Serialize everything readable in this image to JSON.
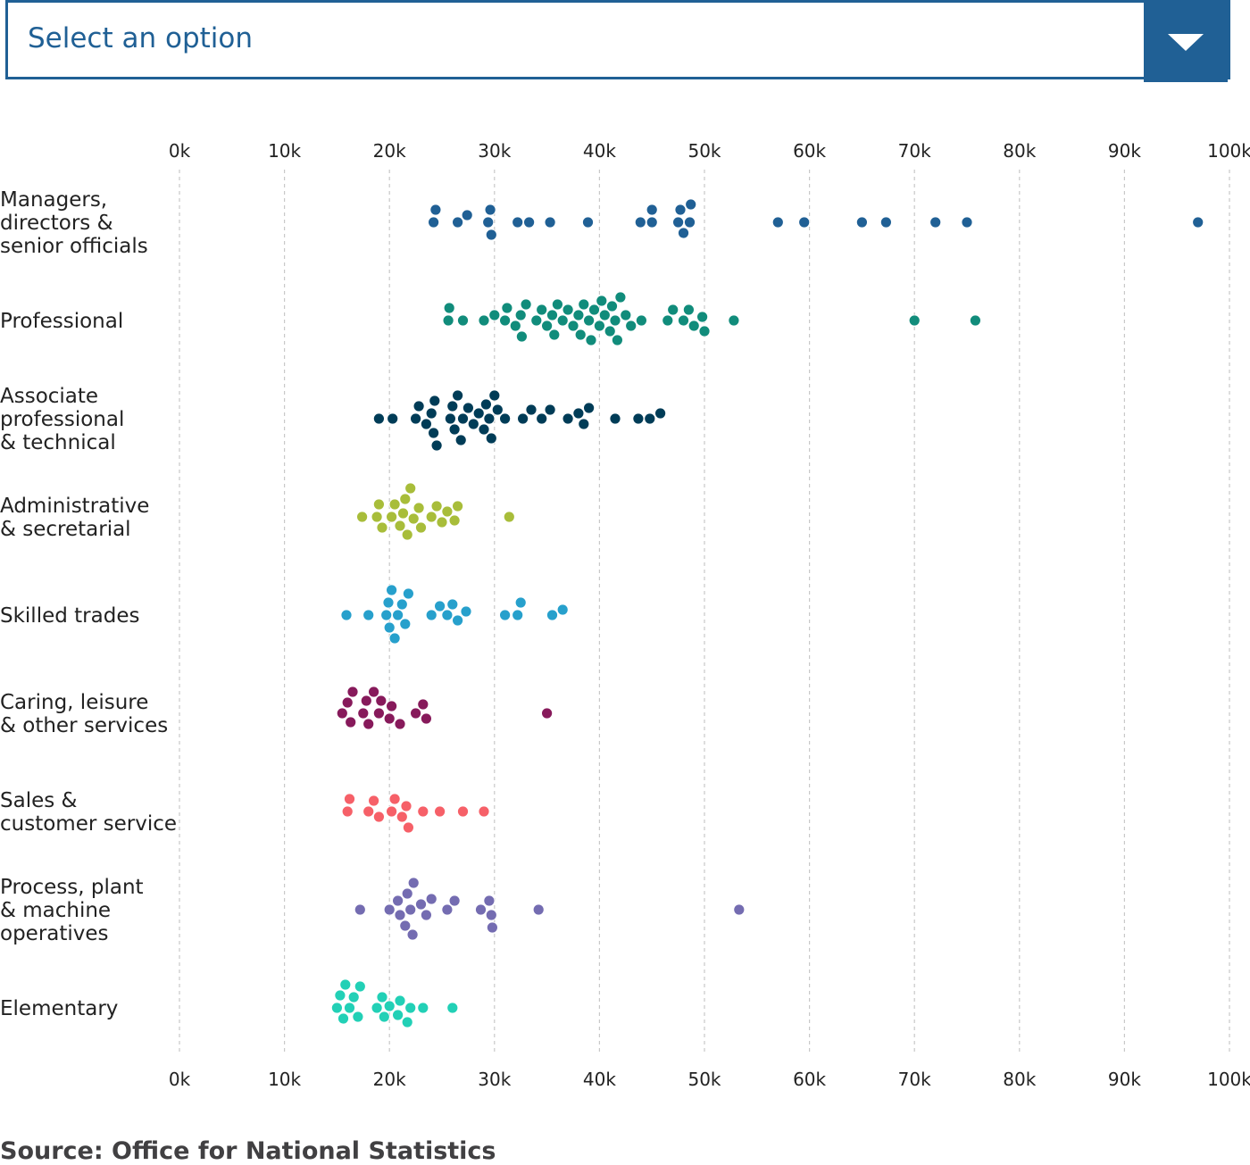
{
  "dropdown": {
    "placeholder": "Select an option",
    "icon": "chevron-down-icon",
    "accent_color": "#206095"
  },
  "source": "Source: Office for National Statistics",
  "chart_data": {
    "type": "scatter",
    "title": "",
    "xlabel": "",
    "ylabel": "",
    "xlim": [
      0,
      100000
    ],
    "x_ticks": [
      0,
      10000,
      20000,
      30000,
      40000,
      50000,
      60000,
      70000,
      80000,
      90000,
      100000
    ],
    "x_tick_labels": [
      "0k",
      "10k",
      "20k",
      "30k",
      "40k",
      "50k",
      "60k",
      "70k",
      "80k",
      "90k",
      "100k"
    ],
    "grid": true,
    "series": [
      {
        "name": "Managers, directors & senior officials",
        "label_lines": [
          "Managers,",
          "directors &",
          "senior officials"
        ],
        "color": "#206095",
        "values": [
          24200,
          24400,
          26500,
          27400,
          29400,
          29600,
          29700,
          32200,
          33300,
          35300,
          38900,
          43900,
          45000,
          45000,
          47500,
          47700,
          48000,
          48600,
          48700,
          57000,
          59500,
          65000,
          67300,
          72000,
          75000,
          97000
        ]
      },
      {
        "name": "Professional",
        "label_lines": [
          "Professional"
        ],
        "color": "#118c7b",
        "values": [
          25600,
          25700,
          27000,
          29000,
          30000,
          31000,
          31200,
          32000,
          32500,
          32600,
          33000,
          34000,
          34500,
          35000,
          35500,
          35700,
          36000,
          36500,
          37000,
          37500,
          38000,
          38200,
          38500,
          39000,
          39200,
          39500,
          40000,
          40200,
          40500,
          41000,
          41200,
          41500,
          41700,
          42000,
          42500,
          43000,
          44000,
          46500,
          47000,
          48000,
          48500,
          49000,
          49800,
          50000,
          52800,
          70000,
          75800
        ]
      },
      {
        "name": "Associate professional & technical",
        "label_lines": [
          "Associate",
          "professional",
          "& technical"
        ],
        "color": "#003c57",
        "values": [
          19000,
          20300,
          22500,
          22800,
          23500,
          24000,
          24200,
          24300,
          24500,
          25800,
          26000,
          26200,
          26500,
          26800,
          27000,
          27500,
          28000,
          28500,
          29000,
          29200,
          29500,
          29700,
          30000,
          30300,
          31000,
          32700,
          33500,
          34500,
          35300,
          37000,
          38000,
          38500,
          39000,
          41500,
          43700,
          44800,
          45800
        ]
      },
      {
        "name": "Administrative & secretarial",
        "label_lines": [
          "Administrative",
          "& secretarial"
        ],
        "color": "#a8bd3a",
        "values": [
          17400,
          18800,
          19000,
          19300,
          20200,
          20500,
          21000,
          21300,
          21500,
          21700,
          22000,
          22300,
          22800,
          23000,
          24000,
          24500,
          25000,
          25500,
          26200,
          26500,
          31400
        ]
      },
      {
        "name": "Skilled trades",
        "label_lines": [
          "Skilled trades"
        ],
        "color": "#27a0cc",
        "values": [
          15900,
          18000,
          19700,
          19900,
          20000,
          20200,
          20500,
          20800,
          21200,
          21500,
          21800,
          24000,
          24800,
          25500,
          26000,
          26500,
          27300,
          31000,
          32200,
          32500,
          35500,
          36500
        ]
      },
      {
        "name": "Caring, leisure & other services",
        "label_lines": [
          "Caring, leisure",
          "& other services"
        ],
        "color": "#871a5b",
        "values": [
          15500,
          16000,
          16300,
          16500,
          17500,
          17800,
          18000,
          18500,
          19000,
          19200,
          20000,
          20200,
          21000,
          22500,
          23200,
          23500,
          35000
        ]
      },
      {
        "name": "Sales & customer service",
        "label_lines": [
          "Sales &",
          "customer service"
        ],
        "color": "#f66068",
        "values": [
          16000,
          16200,
          18000,
          18500,
          19000,
          20200,
          20500,
          21200,
          21600,
          21800,
          23200,
          24800,
          27000,
          29000
        ]
      },
      {
        "name": "Process, plant & machine operatives",
        "label_lines": [
          "Process, plant",
          "& machine",
          "operatives"
        ],
        "color": "#746cb1",
        "values": [
          17200,
          20000,
          20800,
          21000,
          21500,
          21700,
          22000,
          22200,
          22300,
          23000,
          23500,
          24000,
          25500,
          26200,
          28700,
          29500,
          29700,
          29800,
          34200,
          53300
        ]
      },
      {
        "name": "Elementary",
        "label_lines": [
          "Elementary"
        ],
        "color": "#22d0b6",
        "values": [
          15000,
          15300,
          15600,
          15800,
          16200,
          16600,
          17000,
          17200,
          18800,
          19300,
          19500,
          20000,
          20800,
          21000,
          21700,
          22000,
          23200,
          26000
        ]
      }
    ]
  }
}
